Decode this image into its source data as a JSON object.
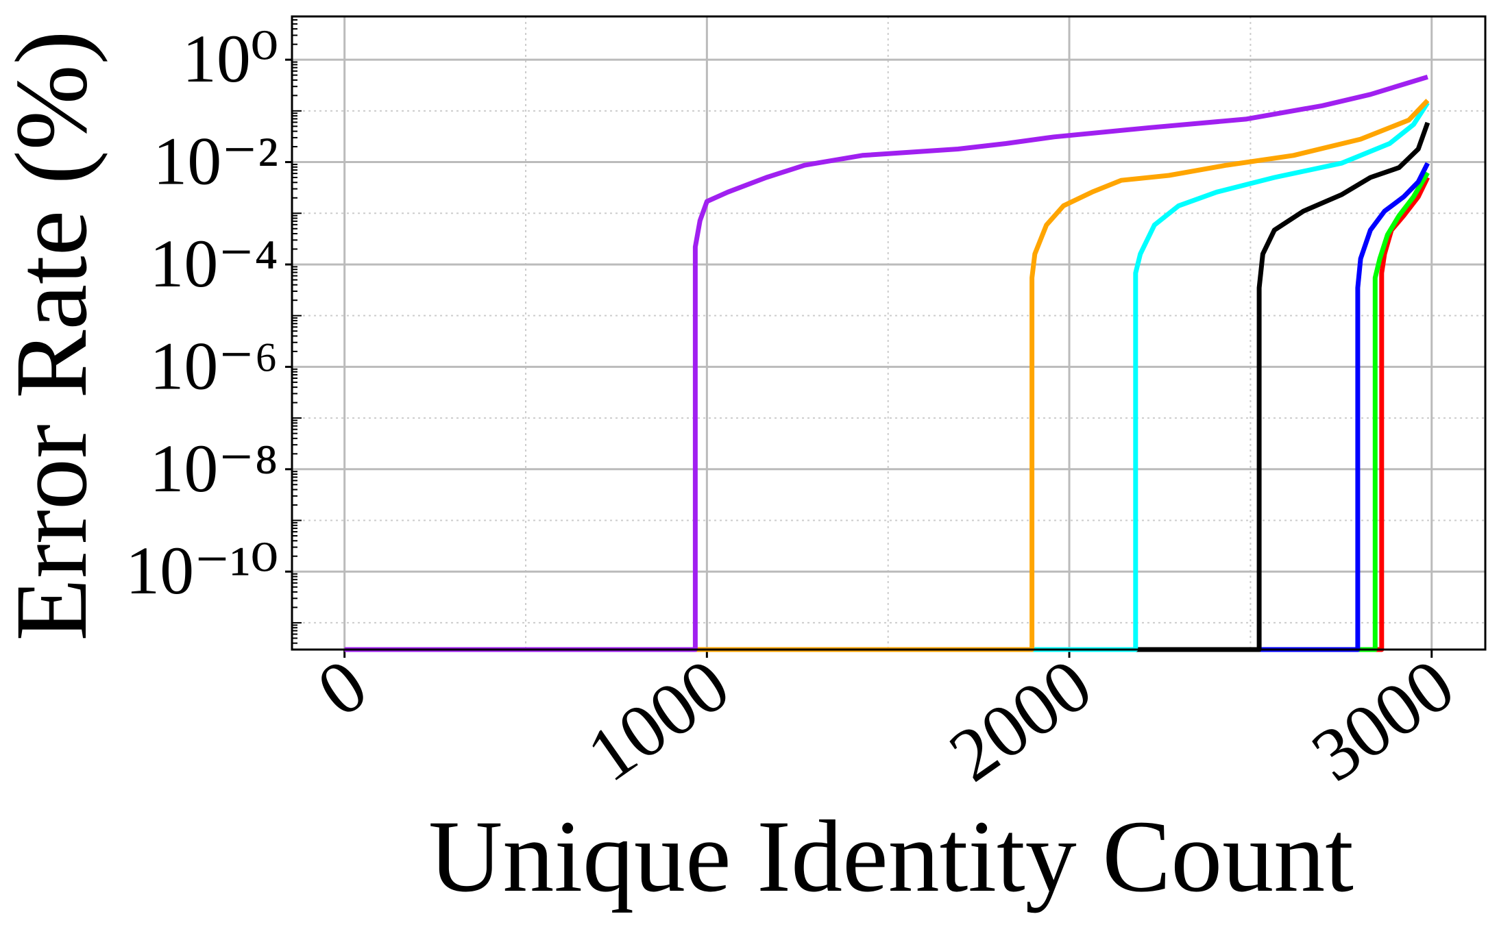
{
  "chart_data": {
    "type": "line",
    "xlabel": "Unique Identity Count",
    "ylabel": "Error Rate (%)",
    "xlim": [
      -145,
      3148
    ],
    "xticks": [
      0,
      1000,
      2000,
      3000
    ],
    "ylim": [
      3e-12,
      7
    ],
    "yscale": "log",
    "yticks": [
      {
        "value": 1,
        "label": "10⁰"
      },
      {
        "value": 0.01,
        "label": "10⁻²"
      },
      {
        "value": 0.0001,
        "label": "10⁻⁴"
      },
      {
        "value": 1e-06,
        "label": "10⁻⁶"
      },
      {
        "value": 1e-08,
        "label": "10⁻⁸"
      },
      {
        "value": 1e-10,
        "label": "10⁻¹⁰"
      }
    ],
    "grid": true,
    "series": [
      {
        "color": "#ff0000",
        "x": [
          0,
          2862,
          2862,
          2870,
          2889,
          2923,
          2963,
          2989
        ],
        "values": [
          3e-12,
          3e-12,
          6.8e-05,
          0.00016,
          0.00047,
          0.0009,
          0.0021,
          0.005
        ]
      },
      {
        "color": "#00ff00",
        "x": [
          0,
          2844,
          2844,
          2857,
          2878,
          2910,
          2950,
          2989
        ],
        "values": [
          3e-12,
          3e-12,
          5.5e-05,
          0.00013,
          0.00038,
          0.0009,
          0.0021,
          0.0062
        ]
      },
      {
        "color": "#0000ff",
        "x": [
          0,
          2796,
          2796,
          2804,
          2831,
          2870,
          2923,
          2963,
          2989
        ],
        "values": [
          3e-12,
          3e-12,
          3.5e-05,
          0.00013,
          0.00047,
          0.0011,
          0.0021,
          0.0041,
          0.0095
        ]
      },
      {
        "color": "#000000",
        "x": [
          0,
          2524,
          2524,
          2534,
          2566,
          2646,
          2751,
          2831,
          2910,
          2963,
          2989
        ],
        "values": [
          3e-12,
          3e-12,
          3.5e-05,
          0.00016,
          0.00047,
          0.0011,
          0.0023,
          0.005,
          0.0078,
          0.018,
          0.059
        ]
      },
      {
        "color": "#00ffff",
        "x": [
          0,
          2183,
          2183,
          2196,
          2235,
          2302,
          2407,
          2566,
          2751,
          2884,
          2950,
          2989
        ],
        "values": [
          3e-12,
          3e-12,
          6.8e-05,
          0.00016,
          0.00059,
          0.0014,
          0.0026,
          0.005,
          0.0095,
          0.023,
          0.054,
          0.145
        ]
      },
      {
        "color": "#ffa500",
        "x": [
          0,
          1897,
          1897,
          1905,
          1937,
          1984,
          2063,
          2143,
          2275,
          2434,
          2619,
          2804,
          2937,
          2989
        ],
        "values": [
          3e-12,
          3e-12,
          5.5e-05,
          0.00016,
          0.00059,
          0.0014,
          0.0026,
          0.0044,
          0.0055,
          0.0087,
          0.0135,
          0.028,
          0.066,
          0.16
        ]
      },
      {
        "color": "#a020f0",
        "x": [
          0,
          968,
          968,
          981,
          1000,
          1058,
          1164,
          1270,
          1429,
          1693,
          1825,
          1958,
          2222,
          2487,
          2698,
          2831,
          2989
        ],
        "values": [
          3e-12,
          3e-12,
          0.00022,
          0.00072,
          0.0017,
          0.0026,
          0.005,
          0.0087,
          0.0135,
          0.018,
          0.023,
          0.031,
          0.047,
          0.069,
          0.126,
          0.21,
          0.46
        ]
      }
    ]
  }
}
